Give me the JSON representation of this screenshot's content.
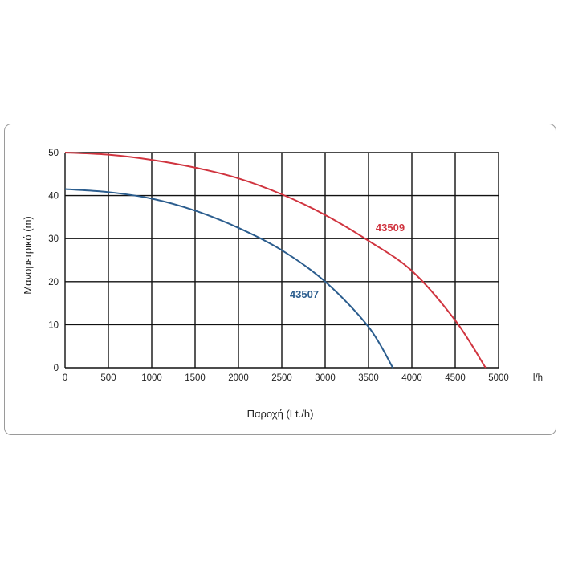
{
  "chart_data": {
    "type": "line",
    "xlabel": "Παροχή (Lt./h)",
    "ylabel": "Μανομετρικό  (m)",
    "x_unit_label": "l/h",
    "xlim": [
      0,
      5000
    ],
    "ylim": [
      0,
      50
    ],
    "x_ticks": [
      "0",
      "500",
      "1000",
      "1500",
      "2000",
      "2500",
      "3000",
      "3500",
      "4000",
      "4500",
      "5000"
    ],
    "y_ticks": [
      "0",
      "10",
      "20",
      "30",
      "40",
      "50"
    ],
    "grid": true,
    "series": [
      {
        "name": "43509",
        "color": "#d0343f",
        "x": [
          0,
          500,
          1000,
          1500,
          2000,
          2500,
          3000,
          3500,
          4000,
          4500,
          4850
        ],
        "y": [
          50,
          49.5,
          48.3,
          46.5,
          44,
          40.3,
          35.5,
          29.5,
          22.5,
          11,
          0
        ]
      },
      {
        "name": "43507",
        "color": "#2b5d8e",
        "x": [
          0,
          500,
          1000,
          1500,
          2000,
          2500,
          3000,
          3500,
          3780
        ],
        "y": [
          41.5,
          40.8,
          39.3,
          36.5,
          32.5,
          27.3,
          20,
          9.5,
          0
        ]
      }
    ]
  }
}
